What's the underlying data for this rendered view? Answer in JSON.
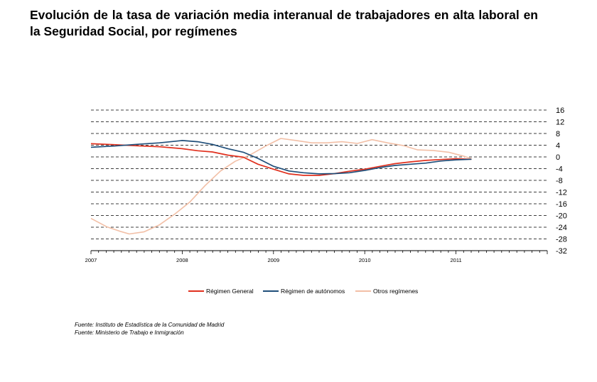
{
  "title": "Evolución de la tasa de variación media interanual de trabajadores en alta laboral en la Seguridad Social, por  regímenes",
  "sources": [
    "Fuente: Instituto de Estadística de la Comunidad de Madrid",
    "Fuente: Ministerio de Trabajo e Inmigración"
  ],
  "chart_data": {
    "type": "line",
    "title": "Evolución de la tasa de variación media interanual de trabajadores en alta laboral en la Seguridad Social, por  regímenes",
    "xlabel": "",
    "ylabel": "",
    "x_tick_labels": [
      "2007",
      "2008",
      "2009",
      "2010",
      "2011"
    ],
    "y_ticks": [
      16,
      12,
      8,
      4,
      0,
      -4,
      -8,
      -12,
      -16,
      -20,
      -24,
      -28,
      -32
    ],
    "ylim": [
      -32,
      16
    ],
    "xlim": [
      2007.0,
      2012.0
    ],
    "y_axis_position": "right",
    "grid": "horizontal dashed",
    "legend_position": "bottom",
    "series": [
      {
        "name": "Régimen General",
        "color": "#e0301e",
        "x": [
          2007.0,
          2007.25,
          2007.5,
          2007.75,
          2008.0,
          2008.17,
          2008.33,
          2008.5,
          2008.67,
          2008.83,
          2009.0,
          2009.17,
          2009.33,
          2009.5,
          2009.67,
          2009.83,
          2010.0,
          2010.17,
          2010.33,
          2010.5,
          2010.67,
          2010.83,
          2011.0,
          2011.17
        ],
        "y": [
          4.5,
          4.2,
          3.8,
          3.5,
          2.8,
          2.1,
          1.7,
          0.6,
          -0.1,
          -2.5,
          -4.2,
          -5.8,
          -6.3,
          -6.3,
          -5.7,
          -4.9,
          -4.2,
          -3.2,
          -2.3,
          -1.7,
          -1.2,
          -0.9,
          -0.6,
          -0.8
        ]
      },
      {
        "name": "Régimen de autónomos",
        "color": "#1f4e79",
        "x": [
          2007.0,
          2007.25,
          2007.5,
          2007.75,
          2008.0,
          2008.17,
          2008.33,
          2008.5,
          2008.67,
          2008.83,
          2009.0,
          2009.17,
          2009.33,
          2009.5,
          2009.67,
          2009.83,
          2010.0,
          2010.17,
          2010.33,
          2010.5,
          2010.67,
          2010.83,
          2011.0,
          2011.17
        ],
        "y": [
          3.3,
          3.7,
          4.3,
          4.8,
          5.6,
          5.2,
          4.3,
          2.8,
          1.6,
          -0.5,
          -3.2,
          -4.8,
          -5.4,
          -5.8,
          -5.7,
          -5.4,
          -4.6,
          -3.6,
          -2.9,
          -2.5,
          -2.1,
          -1.4,
          -1.0,
          -0.8
        ]
      },
      {
        "name": "Otros regímenes",
        "color": "#f2bfa6",
        "x": [
          2007.0,
          2007.17,
          2007.33,
          2007.42,
          2007.58,
          2007.75,
          2007.92,
          2008.08,
          2008.25,
          2008.42,
          2008.58,
          2008.75,
          2008.92,
          2009.08,
          2009.25,
          2009.42,
          2009.58,
          2009.75,
          2009.92,
          2010.08,
          2010.25,
          2010.42,
          2010.58,
          2010.75,
          2010.92,
          2011.08,
          2011.17
        ],
        "y": [
          -21.0,
          -23.8,
          -25.5,
          -26.3,
          -25.6,
          -23.2,
          -19.5,
          -15.5,
          -9.8,
          -4.8,
          -1.5,
          0.8,
          3.8,
          6.3,
          5.6,
          4.8,
          4.8,
          5.2,
          4.6,
          5.9,
          4.8,
          3.9,
          2.4,
          2.2,
          1.6,
          0.3,
          -0.6
        ]
      }
    ]
  }
}
